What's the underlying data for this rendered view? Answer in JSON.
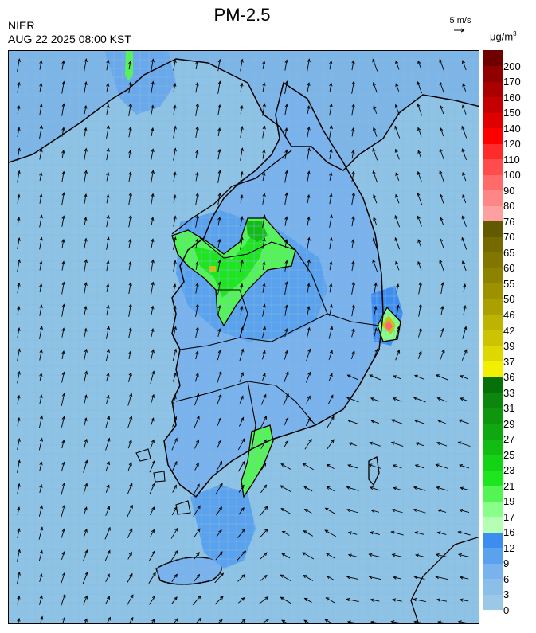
{
  "header": {
    "agency": "NIER",
    "timestamp": "AUG 22 2025 08:00 KST",
    "title": "PM-2.5",
    "wind_reference": "5 m/s",
    "unit_base": "μg/m",
    "unit_exp": "3"
  },
  "legend": {
    "bands": [
      {
        "label": "0",
        "color": "#9bc8e6"
      },
      {
        "label": "3",
        "color": "#8cbfe8"
      },
      {
        "label": "6",
        "color": "#79b2ec"
      },
      {
        "label": "9",
        "color": "#5aa2ee"
      },
      {
        "label": "12",
        "color": "#3d8cf0"
      },
      {
        "label": "16",
        "color": "#b4ffb4"
      },
      {
        "label": "17",
        "color": "#88ff88"
      },
      {
        "label": "19",
        "color": "#55f455"
      },
      {
        "label": "21",
        "color": "#1ee61e"
      },
      {
        "label": "23",
        "color": "#14d214"
      },
      {
        "label": "25",
        "color": "#12bc12"
      },
      {
        "label": "27",
        "color": "#10a810"
      },
      {
        "label": "29",
        "color": "#0e960e"
      },
      {
        "label": "31",
        "color": "#0c860c"
      },
      {
        "label": "33",
        "color": "#087008"
      },
      {
        "label": "36",
        "color": "#f0f000"
      },
      {
        "label": "37",
        "color": "#dcd800"
      },
      {
        "label": "39",
        "color": "#ccc400"
      },
      {
        "label": "42",
        "color": "#bcb400"
      },
      {
        "label": "46",
        "color": "#aaa000"
      },
      {
        "label": "50",
        "color": "#9c9200"
      },
      {
        "label": "55",
        "color": "#8c8300"
      },
      {
        "label": "60",
        "color": "#807600"
      },
      {
        "label": "65",
        "color": "#746a00"
      },
      {
        "label": "70",
        "color": "#625a00"
      },
      {
        "label": "76",
        "color": "#ffa0a0"
      },
      {
        "label": "80",
        "color": "#ff8686"
      },
      {
        "label": "90",
        "color": "#ff6a6a"
      },
      {
        "label": "100",
        "color": "#ff4c4c"
      },
      {
        "label": "110",
        "color": "#ff2a2a"
      },
      {
        "label": "120",
        "color": "#ff0000"
      },
      {
        "label": "140",
        "color": "#e00000"
      },
      {
        "label": "150",
        "color": "#c40000"
      },
      {
        "label": "160",
        "color": "#aa0000"
      },
      {
        "label": "170",
        "color": "#900000"
      },
      {
        "label": "200",
        "color": "#6e0000"
      }
    ]
  },
  "map": {
    "sea_color": "#8fc3e5",
    "coast_color": "#000000"
  }
}
